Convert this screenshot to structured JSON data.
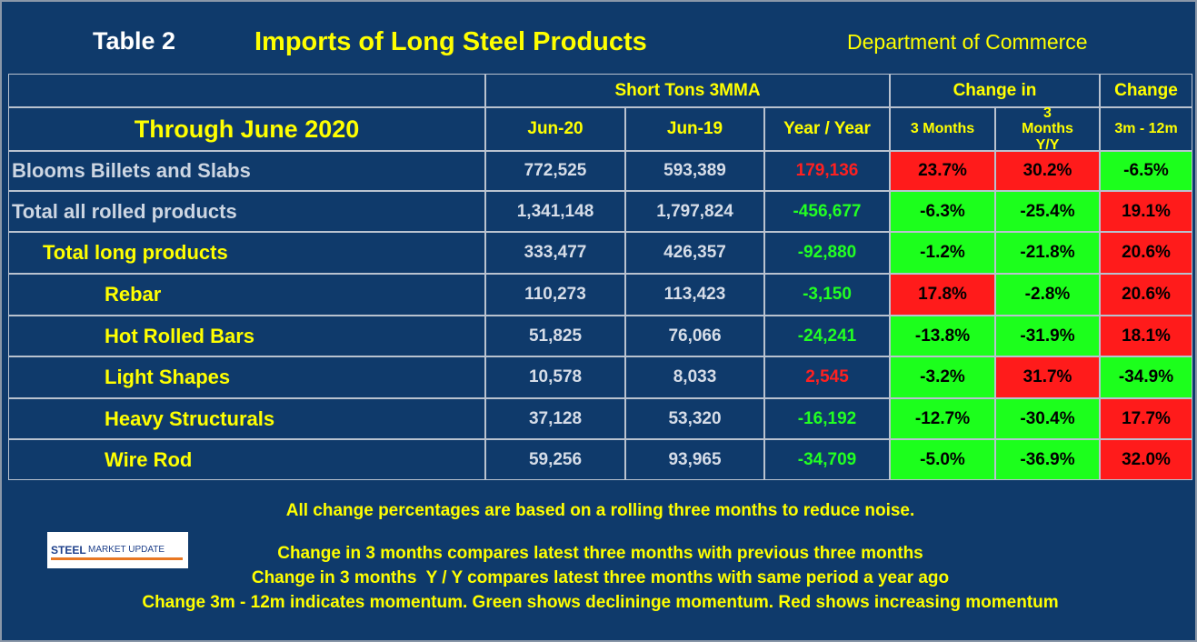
{
  "header": {
    "table_label": "Table 2",
    "title": "Imports of Long Steel Products",
    "source": "Department of Commerce"
  },
  "table": {
    "group_headers": [
      "Short Tons 3MMA",
      "Change in",
      "Change"
    ],
    "period": "Through June 2020",
    "columns": [
      "Jun-20",
      "Jun-19",
      "Year / Year",
      "3 Months",
      "3 Months Y/Y",
      "3m - 12m"
    ],
    "rows": [
      {
        "label": "Blooms Billets and Slabs",
        "level": 0,
        "cells": [
          "772,525",
          "593,389",
          "179,136",
          "23.7%",
          "30.2%",
          "-6.5%"
        ],
        "yy_color": "red",
        "fills": [
          "red",
          "red",
          "green"
        ]
      },
      {
        "label": "Total all rolled products",
        "level": 0,
        "cells": [
          "1,341,148",
          "1,797,824",
          "-456,677",
          "-6.3%",
          "-25.4%",
          "19.1%"
        ],
        "yy_color": "green",
        "fills": [
          "green",
          "green",
          "red"
        ]
      },
      {
        "label": "Total long products",
        "level": 1,
        "cells": [
          "333,477",
          "426,357",
          "-92,880",
          "-1.2%",
          "-21.8%",
          "20.6%"
        ],
        "yy_color": "green",
        "fills": [
          "green",
          "green",
          "red"
        ]
      },
      {
        "label": "Rebar",
        "level": 2,
        "cells": [
          "110,273",
          "113,423",
          "-3,150",
          "17.8%",
          "-2.8%",
          "20.6%"
        ],
        "yy_color": "green",
        "fills": [
          "red",
          "green",
          "red"
        ]
      },
      {
        "label": "Hot Rolled Bars",
        "level": 2,
        "cells": [
          "51,825",
          "76,066",
          "-24,241",
          "-13.8%",
          "-31.9%",
          "18.1%"
        ],
        "yy_color": "green",
        "fills": [
          "green",
          "green",
          "red"
        ]
      },
      {
        "label": "Light Shapes",
        "level": 2,
        "cells": [
          "10,578",
          "8,033",
          "2,545",
          "-3.2%",
          "31.7%",
          "-34.9%"
        ],
        "yy_color": "red",
        "fills": [
          "green",
          "red",
          "green"
        ]
      },
      {
        "label": "Heavy Structurals",
        "level": 2,
        "cells": [
          "37,128",
          "53,320",
          "-16,192",
          "-12.7%",
          "-30.4%",
          "17.7%"
        ],
        "yy_color": "green",
        "fills": [
          "green",
          "green",
          "red"
        ]
      },
      {
        "label": "Wire Rod",
        "level": 2,
        "cells": [
          "59,256",
          "93,965",
          "-34,709",
          "-5.0%",
          "-36.9%",
          "32.0%"
        ],
        "yy_color": "green",
        "fills": [
          "green",
          "green",
          "red"
        ]
      }
    ]
  },
  "notes": [
    "All change percentages are based on a rolling three months to reduce noise.",
    "Change in 3 months compares latest three months with previous three months",
    "Change in 3 months  Y / Y compares latest three months with same period a year ago",
    "Change 3m - 12m indicates momentum. Green shows declininge momentum. Red shows increasing momentum"
  ],
  "logo": {
    "brand": "STEEL",
    "text": "MARKET UPDATE"
  }
}
